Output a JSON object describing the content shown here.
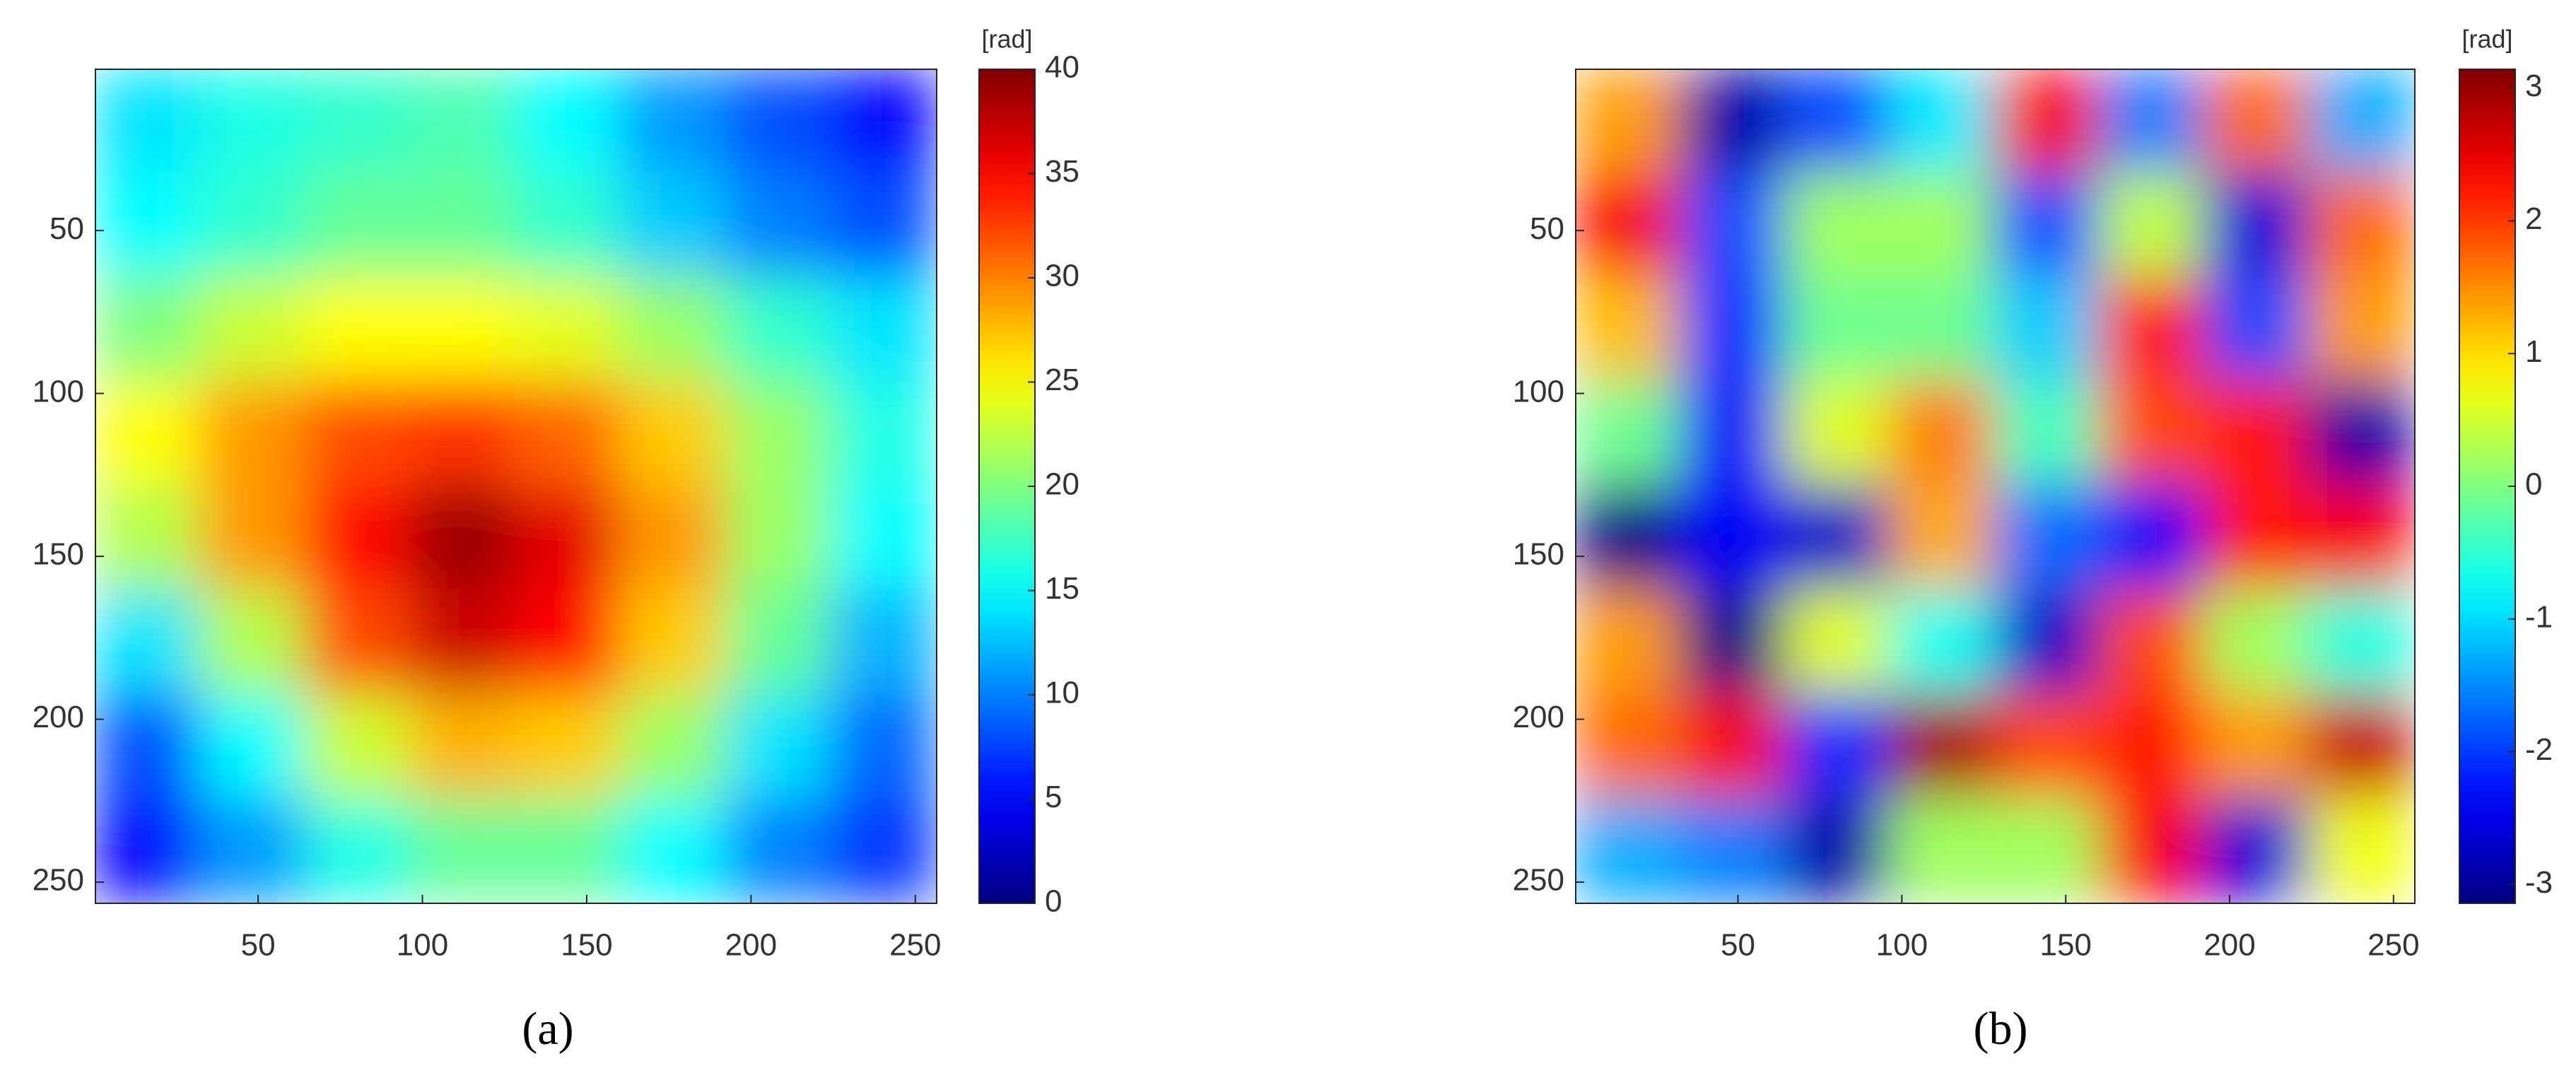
{
  "chart_data": [
    {
      "type": "heatmap",
      "colormap": "jet",
      "caption": "(a)",
      "colorbar_label": "[rad]",
      "x": [
        16,
        48,
        80,
        112,
        144,
        176,
        208,
        240
      ],
      "y": [
        16,
        48,
        80,
        112,
        144,
        176,
        208,
        240
      ],
      "z": [
        [
          14,
          16,
          17,
          18,
          15,
          11,
          8,
          5
        ],
        [
          15,
          17,
          19,
          19,
          17,
          13,
          10,
          8
        ],
        [
          20,
          23,
          25,
          25,
          24,
          21,
          17,
          14
        ],
        [
          25,
          29,
          32,
          33,
          31,
          27,
          21,
          16
        ],
        [
          22,
          29,
          35,
          39,
          36,
          29,
          21,
          15
        ],
        [
          14,
          22,
          32,
          37,
          35,
          27,
          19,
          12
        ],
        [
          8,
          15,
          23,
          28,
          27,
          21,
          14,
          9
        ],
        [
          5,
          11,
          16,
          19,
          19,
          15,
          10,
          7
        ]
      ],
      "xlim": [
        0.5,
        256.5
      ],
      "ylim": [
        256.5,
        0.5
      ],
      "xticks": [
        50,
        100,
        150,
        200,
        250
      ],
      "yticks": [
        50,
        100,
        150,
        200,
        250
      ],
      "clim": [
        0,
        40
      ],
      "cticks": [
        0,
        5,
        10,
        15,
        20,
        25,
        30,
        35,
        40
      ]
    },
    {
      "type": "heatmap",
      "colormap": "jet",
      "caption": "(b)",
      "colorbar_label": "[rad]",
      "x": [
        16,
        48,
        80,
        112,
        144,
        176,
        208,
        240
      ],
      "y": [
        16,
        48,
        80,
        112,
        144,
        176,
        208,
        240
      ],
      "z": [
        [
          1.4,
          -2.9,
          -1.9,
          -0.9,
          2.4,
          -1.6,
          1.7,
          -1.3
        ],
        [
          2.4,
          -1.9,
          0.2,
          0.2,
          -1.9,
          0.4,
          -2.6,
          1.7
        ],
        [
          1.2,
          -2.1,
          -0.1,
          -0.1,
          -1.1,
          2.2,
          -1.9,
          1.4
        ],
        [
          -0.1,
          -2.4,
          0.6,
          1.6,
          -0.4,
          1.9,
          2.2,
          -2.9
        ],
        [
          -3.1,
          -2.4,
          -2.7,
          1.3,
          -1.7,
          -2.4,
          2.2,
          2.4
        ],
        [
          1.4,
          -3.1,
          0.6,
          -0.7,
          -2.7,
          1.9,
          0.2,
          -0.6
        ],
        [
          1.7,
          2.4,
          -2.1,
          2.9,
          1.9,
          2.2,
          1.4,
          2.7
        ],
        [
          -1.3,
          -1.6,
          -2.9,
          0.2,
          0.2,
          2.4,
          -2.6,
          0.7
        ]
      ],
      "xlim": [
        0.5,
        256.5
      ],
      "ylim": [
        256.5,
        0.5
      ],
      "xticks": [
        50,
        100,
        150,
        200,
        250
      ],
      "yticks": [
        50,
        100,
        150,
        200,
        250
      ],
      "clim": [
        -3.1416,
        3.1416
      ],
      "cticks": [
        -3,
        -2,
        -1,
        0,
        1,
        2,
        3
      ]
    }
  ]
}
